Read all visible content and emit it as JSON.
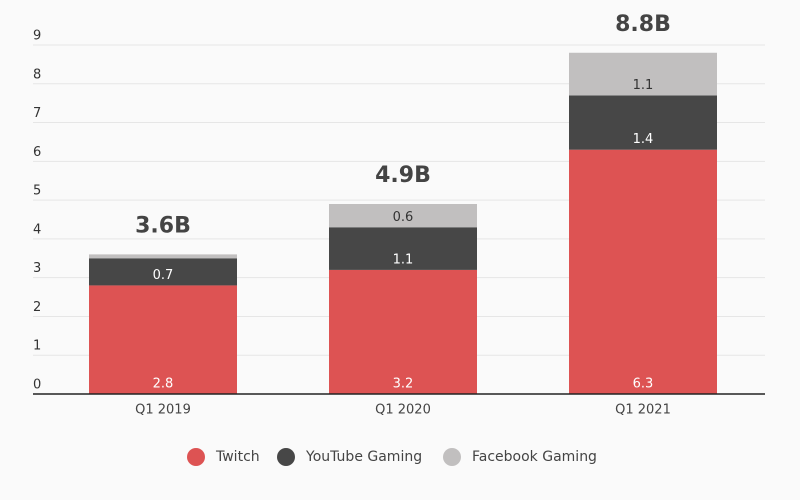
{
  "chart_data": {
    "type": "stacked_bar",
    "categories": [
      "Q1 2019",
      "Q1 2020",
      "Q1 2021"
    ],
    "series": [
      {
        "name": "Twitch",
        "color": "#dd5353",
        "values": [
          2.8,
          3.2,
          6.3
        ]
      },
      {
        "name": "YouTube Gaming",
        "color": "#474747",
        "values": [
          0.7,
          1.1,
          1.4
        ]
      },
      {
        "name": "Facebook Gaming",
        "color": "#c1bfbf",
        "values": [
          0.1,
          0.6,
          1.1
        ]
      }
    ],
    "totals": {
      "values": [
        3.6,
        4.9,
        8.8
      ],
      "value_labels": [
        "3.6B",
        "4.9B",
        "8.8B"
      ]
    },
    "ylim": [
      0,
      9
    ],
    "yticks": [
      0,
      1,
      2,
      3,
      4,
      5,
      6,
      7,
      8,
      9
    ],
    "grid": true
  }
}
